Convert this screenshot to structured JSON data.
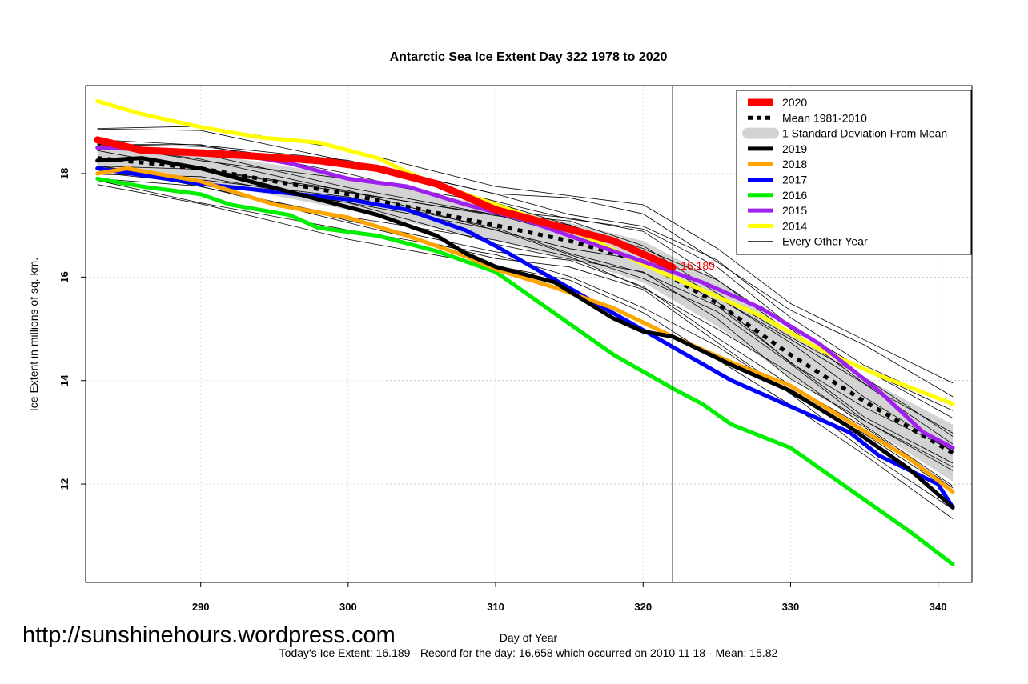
{
  "colors": {
    "y2020": "#ff0000",
    "mean": "#000000",
    "sd": "#d3d3d3",
    "y2019": "#000000",
    "y2018": "#ffa500",
    "y2017": "#0000ff",
    "y2016": "#00ee00",
    "y2015": "#a020f0",
    "y2014": "#ffff00",
    "other": "#000000",
    "grid": "#c8c8c8"
  },
  "chart_data": {
    "type": "line",
    "title": "Antarctic Sea Ice Extent Day 322 1978 to 2020",
    "xlabel": "Day of Year",
    "ylabel": "Ice Extent in millions of sq. km.",
    "xlim": [
      282.2,
      342.3
    ],
    "ylim": [
      10.1,
      19.7
    ],
    "x_ticks": [
      "290",
      "300",
      "310",
      "320",
      "330",
      "340"
    ],
    "y_ticks": [
      "12",
      "14",
      "16",
      "18"
    ],
    "grid": true,
    "legend_position": "top-right",
    "marker_day": 322,
    "annotation": {
      "x": 322,
      "y": 16.189,
      "text": "16.189"
    },
    "series": [
      {
        "name": "2020",
        "key": "y2020",
        "x": [
          283,
          286,
          290,
          294,
          298,
          302,
          306,
          310,
          314,
          318,
          322
        ],
        "values": [
          18.65,
          18.45,
          18.4,
          18.33,
          18.25,
          18.1,
          17.8,
          17.3,
          17.0,
          16.7,
          16.189
        ]
      },
      {
        "name": "Mean 1981-2010",
        "key": "mean",
        "x": [
          283,
          290,
          300,
          310,
          315,
          320,
          325,
          330,
          335,
          341
        ],
        "values": [
          18.3,
          18.1,
          17.6,
          17.0,
          16.7,
          16.3,
          15.5,
          14.5,
          13.6,
          12.6
        ]
      },
      {
        "name": "1 Standard Deviation From Mean",
        "key": "sd",
        "x": [
          283,
          290,
          300,
          310,
          315,
          320,
          325,
          330,
          335,
          341
        ],
        "lower": [
          18.05,
          17.85,
          17.3,
          16.7,
          16.35,
          15.9,
          15.05,
          14.05,
          13.15,
          12.05
        ],
        "upper": [
          18.55,
          18.4,
          17.95,
          17.35,
          17.05,
          16.7,
          15.95,
          14.95,
          14.05,
          13.15
        ]
      },
      {
        "name": "2019",
        "key": "y2019",
        "x": [
          283,
          286,
          290,
          294,
          298,
          302,
          306,
          308,
          310,
          314,
          318,
          320,
          322,
          326,
          330,
          334,
          338,
          341
        ],
        "values": [
          18.25,
          18.3,
          18.1,
          17.8,
          17.5,
          17.2,
          16.8,
          16.45,
          16.2,
          15.9,
          15.2,
          14.95,
          14.85,
          14.3,
          13.8,
          13.1,
          12.3,
          11.55
        ]
      },
      {
        "name": "2018",
        "key": "y2018",
        "x": [
          283,
          285,
          290,
          295,
          300,
          304,
          308,
          310,
          314,
          318,
          322,
          326,
          330,
          334,
          338,
          341
        ],
        "values": [
          18.0,
          18.1,
          17.85,
          17.4,
          17.15,
          16.8,
          16.4,
          16.15,
          15.8,
          15.4,
          14.85,
          14.35,
          13.9,
          13.2,
          12.5,
          11.85
        ]
      },
      {
        "name": "2017",
        "key": "y2017",
        "x": [
          283,
          290,
          295,
          300,
          304,
          308,
          310,
          314,
          318,
          322,
          326,
          330,
          334,
          336,
          340,
          341
        ],
        "values": [
          18.1,
          17.8,
          17.65,
          17.5,
          17.3,
          16.9,
          16.6,
          15.95,
          15.3,
          14.65,
          14.0,
          13.5,
          13.0,
          12.55,
          12.0,
          11.55
        ]
      },
      {
        "name": "2016",
        "key": "y2016",
        "x": [
          283,
          286,
          290,
          292,
          296,
          298,
          302,
          306,
          310,
          314,
          318,
          322,
          324,
          326,
          330,
          334,
          338,
          341
        ],
        "values": [
          17.9,
          17.75,
          17.6,
          17.4,
          17.2,
          16.95,
          16.8,
          16.5,
          16.1,
          15.3,
          14.5,
          13.85,
          13.55,
          13.15,
          12.7,
          11.9,
          11.1,
          10.45
        ]
      },
      {
        "name": "2015",
        "key": "y2015",
        "x": [
          283,
          288,
          292,
          296,
          300,
          304,
          308,
          312,
          316,
          320,
          324,
          328,
          332,
          336,
          339,
          341
        ],
        "values": [
          18.5,
          18.45,
          18.4,
          18.2,
          17.9,
          17.75,
          17.4,
          17.1,
          16.7,
          16.3,
          15.9,
          15.4,
          14.7,
          13.8,
          13.0,
          12.7
        ]
      },
      {
        "name": "2014",
        "key": "y2014",
        "x": [
          283,
          286,
          290,
          294,
          298,
          302,
          305,
          308,
          312,
          316,
          320,
          324,
          328,
          332,
          336,
          341
        ],
        "values": [
          19.4,
          19.15,
          18.9,
          18.7,
          18.6,
          18.3,
          17.9,
          17.6,
          17.2,
          16.8,
          16.25,
          15.75,
          15.25,
          14.6,
          14.1,
          13.55
        ]
      },
      {
        "name": "Every Other Year",
        "key": "other",
        "x": [
          283,
          290,
          300,
          310,
          315,
          320,
          325,
          330,
          335,
          341
        ],
        "offsets": [
          0.8,
          -0.75,
          0.55,
          -0.5,
          0.35,
          -0.3,
          0.2,
          -0.15,
          0.45,
          -0.4,
          0.65,
          -0.6,
          0.1,
          -0.05,
          0.28,
          -0.22,
          0.95,
          -0.9
        ]
      }
    ]
  },
  "annotation_text": "16.189",
  "footer_text": "Today's Ice Extent: 16.189  - Record for the day: 16.658 which occurred on 2010 11 18  - Mean: 15.82",
  "url_text": "http://sunshinehours.wordpress.com"
}
